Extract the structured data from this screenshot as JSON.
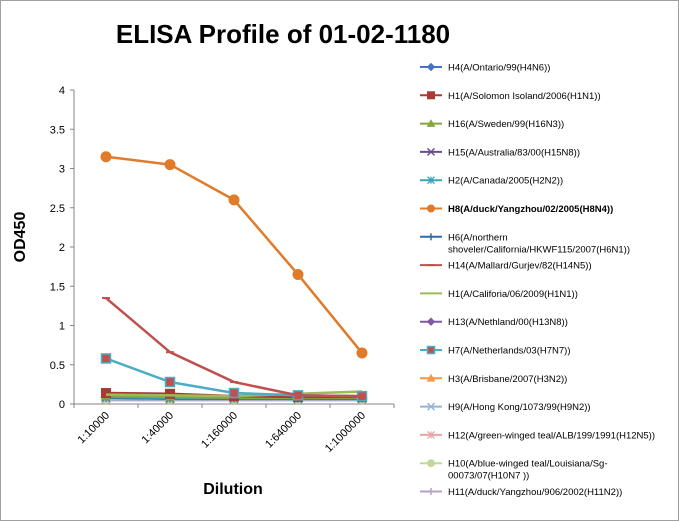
{
  "chart_data": {
    "type": "line",
    "title": "ELISA Profile of 01-02-1180",
    "xlabel": "Dilution",
    "ylabel": "OD450",
    "ylim": [
      0,
      4
    ],
    "yticks": [
      "0",
      "0.5",
      "1",
      "1.5",
      "2",
      "2.5",
      "3",
      "3.5",
      "4"
    ],
    "categories": [
      "1:10000",
      "1:40000",
      "1:160000",
      "1:640000",
      "1:1000000"
    ],
    "grid": false,
    "legend_position": "right",
    "series": [
      {
        "name": "H4(A/Ontario/99(H4N6))",
        "color": "#4472c4",
        "marker": "diamond",
        "values": [
          0.1,
          0.09,
          0.08,
          0.08,
          0.08
        ]
      },
      {
        "name": "H1(A/Solomon Isoland/2006(H1N1))",
        "color": "#a83a35",
        "marker": "square",
        "values": [
          0.14,
          0.13,
          0.1,
          0.09,
          0.09
        ]
      },
      {
        "name": "H16(A/Sweden/99(H16N3))",
        "color": "#89a540",
        "marker": "triangle",
        "values": [
          0.1,
          0.09,
          0.08,
          0.08,
          0.08
        ]
      },
      {
        "name": "H15(A/Australia/83/00(H15N8))",
        "color": "#6a4e8c",
        "marker": "x",
        "values": [
          0.08,
          0.07,
          0.07,
          0.07,
          0.07
        ]
      },
      {
        "name": "H2(A/Canada/2005(H2N2))",
        "color": "#3aa3bc",
        "marker": "star",
        "values": [
          0.09,
          0.08,
          0.08,
          0.08,
          0.08
        ]
      },
      {
        "name": "H8(A/duck/Yangzhou/02/2005(H8N4))",
        "color": "#e07b2a",
        "marker": "circle",
        "bold": true,
        "values": [
          3.15,
          3.05,
          2.6,
          1.65,
          0.65
        ]
      },
      {
        "name": "H6(A/northern shoveler/California/HKWF115/2007(H6N1))",
        "name_lines": [
          "H6(A/northern",
          "shoveler/California/HKWF115/2007(H6N1))"
        ],
        "color": "#2e6da4",
        "marker": "plus",
        "values": [
          0.08,
          0.07,
          0.07,
          0.07,
          0.07
        ]
      },
      {
        "name": "H14(A/Mallard/Gurjev/82(H14N5))",
        "color": "#c0504d",
        "marker": "dash",
        "values": [
          1.35,
          0.66,
          0.28,
          0.11,
          0.1
        ]
      },
      {
        "name": "H1(A/Califoria/06/2009(H1N1))",
        "color": "#9bbb59",
        "marker": "none",
        "values": [
          0.12,
          0.11,
          0.1,
          0.13,
          0.16
        ]
      },
      {
        "name": "H13(A/Nethland/00(H13N8))",
        "color": "#7e5aa2",
        "marker": "diamond",
        "values": [
          0.07,
          0.07,
          0.07,
          0.07,
          0.07
        ]
      },
      {
        "name": "H7(A/Netherlands/03(H7N7))",
        "color": "#4bacc6",
        "marker": "square",
        "marker_fill": "#c0504d",
        "values": [
          0.58,
          0.28,
          0.14,
          0.11,
          0.1
        ]
      },
      {
        "name": "H3(A/Brisbane/2007(H3N2))",
        "color": "#f79646",
        "marker": "triangle",
        "values": [
          0.07,
          0.07,
          0.07,
          0.07,
          0.07
        ]
      },
      {
        "name": "H9(A/Hong Kong/1073/99(H9N2))",
        "color": "#95b3d7",
        "marker": "x",
        "values": [
          0.06,
          0.06,
          0.06,
          0.06,
          0.06
        ]
      },
      {
        "name": "H12(A/green-winged teal/ALB/199/1991(H12N5))",
        "color": "#e6a5a3",
        "marker": "star",
        "values": [
          0.07,
          0.07,
          0.07,
          0.07,
          0.07
        ]
      },
      {
        "name": "H10(A/blue-winged teal/Louisiana/Sg-00073/07(H10N7 ))",
        "name_lines": [
          "H10(A/blue-winged teal/Louisiana/Sg-",
          "00073/07(H10N7 ))"
        ],
        "color": "#c3d69b",
        "marker": "circle",
        "values": [
          0.07,
          0.07,
          0.07,
          0.07,
          0.07
        ]
      },
      {
        "name": "H11(A/duck/Yangzhou/906/2002(H11N2))",
        "color": "#b3a2c7",
        "marker": "plus",
        "values": [
          0.05,
          0.05,
          0.05,
          0.05,
          0.05
        ]
      }
    ]
  }
}
